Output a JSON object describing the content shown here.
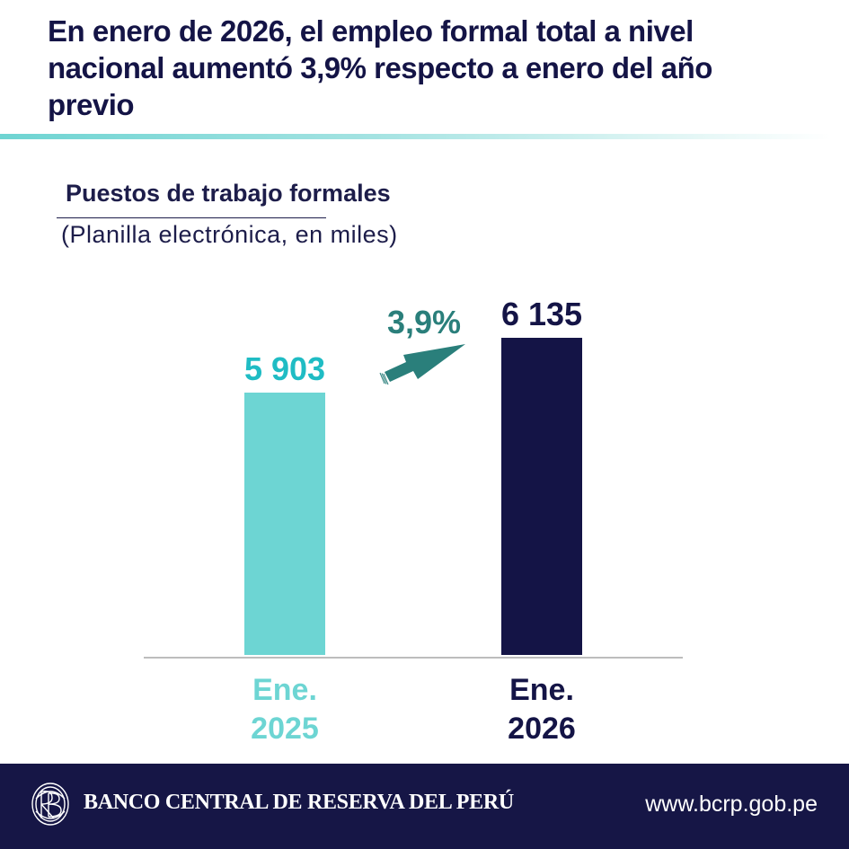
{
  "headline": "En enero de 2026, el empleo formal total a nivel nacional aumentó 3,9% respecto a enero del año previo",
  "chart_data": {
    "type": "bar",
    "title": "Puestos de trabajo formales",
    "subtitle": "(Planilla electrónica, en miles)",
    "categories": [
      "Ene. 2025",
      "Ene. 2026"
    ],
    "category_lines": [
      [
        "Ene.",
        "2025"
      ],
      [
        "Ene.",
        "2026"
      ]
    ],
    "values": [
      5903,
      6135
    ],
    "value_labels": [
      "5 903",
      "6 135"
    ],
    "bar_colors": [
      "#6dd5d3",
      "#141446"
    ],
    "label_colors": [
      "#1fbcc4",
      "#141446"
    ],
    "category_label_colors": [
      "#6dd5d3",
      "#141446"
    ],
    "growth_annotation": {
      "text": "3,9%",
      "color": "#2a7f7b"
    },
    "axis_color": "#bdbdbd",
    "xlabel": "",
    "ylabel": "",
    "grid": false,
    "legend": "none"
  },
  "colors": {
    "primary_navy": "#141446",
    "accent_teal": "#6dd5d3",
    "arrow_teal": "#2a7f7b",
    "footer_bg": "#161646"
  },
  "footer": {
    "logo_icon": "bcrp-monogram-icon",
    "bank_name": "BANCO CENTRAL DE RESERVA DEL PERÚ",
    "url": "www.bcrp.gob.pe"
  }
}
